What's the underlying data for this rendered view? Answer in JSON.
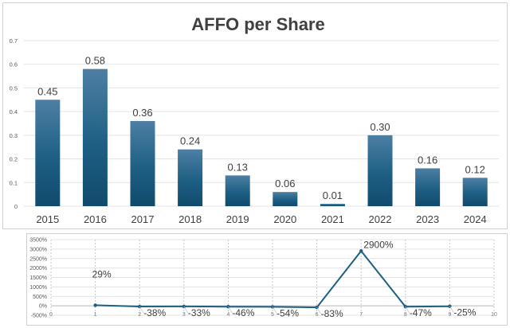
{
  "chart_data": [
    {
      "type": "bar",
      "title": "AFFO per Share",
      "categories": [
        "2015",
        "2016",
        "2017",
        "2018",
        "2019",
        "2020",
        "2021",
        "2022",
        "2023",
        "2024"
      ],
      "values": [
        0.45,
        0.58,
        0.36,
        0.24,
        0.13,
        0.06,
        0.01,
        0.3,
        0.16,
        0.12
      ],
      "data_labels": [
        "0.45",
        "0.58",
        "0.36",
        "0.24",
        "0.13",
        "0.06",
        "0.01",
        "0.30",
        "0.16",
        "0.12"
      ],
      "yticks": [
        "0",
        "0.1",
        "0.2",
        "0.3",
        "0.4",
        "0.5",
        "0.6",
        "0.7"
      ],
      "ylim": [
        0,
        0.7
      ],
      "grid": true,
      "color": "#1e5f84"
    },
    {
      "type": "line",
      "x": [
        1,
        2,
        3,
        4,
        5,
        6,
        7,
        8,
        9
      ],
      "values": [
        29,
        -38,
        -33,
        -46,
        -54,
        -83,
        2900,
        -47,
        -25
      ],
      "data_labels": [
        "29%",
        "-38%",
        "-33%",
        "-46%",
        "-54%",
        "-83%",
        "2900%",
        "-47%",
        "-25%"
      ],
      "xticks": [
        "0",
        "1",
        "2",
        "3",
        "4",
        "5",
        "6",
        "7",
        "8",
        "9",
        "10"
      ],
      "xlim": [
        0,
        10
      ],
      "yticks": [
        "-500%",
        "0%",
        "500%",
        "1000%",
        "1500%",
        "2000%",
        "2500%",
        "3000%",
        "3500%"
      ],
      "ylim": [
        -500,
        3500
      ],
      "grid": true,
      "color": "#1e5f84"
    }
  ]
}
